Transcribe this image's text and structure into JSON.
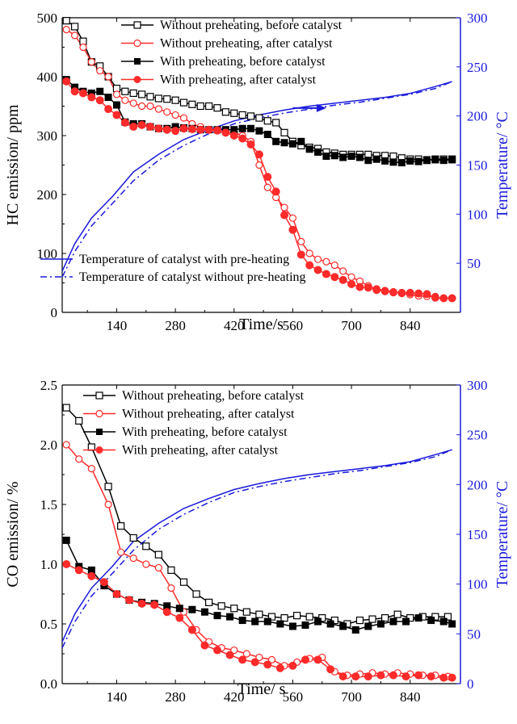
{
  "colors": {
    "black": "#000000",
    "red": "#ff2a2a",
    "blue": "#1a1adc"
  },
  "chart_data": [
    {
      "type": "line",
      "xlabel": "Time/s",
      "ylabel": "HC emission/ ppm",
      "y2label": "Temperature/ °C",
      "xlim": [
        10,
        960
      ],
      "ylim": [
        0,
        500
      ],
      "y2lim": [
        0,
        300
      ],
      "xticks": [
        140,
        280,
        420,
        560,
        700,
        840
      ],
      "yticks": [
        0,
        100,
        200,
        300,
        400,
        500
      ],
      "y2ticks": [
        50,
        100,
        150,
        200,
        250,
        300
      ],
      "legend_position": "top-center",
      "series": [
        {
          "name": "Without preheating, before catalyst",
          "axis": "left",
          "color": "#000000",
          "marker": "open-square",
          "x": [
            20,
            40,
            60,
            80,
            100,
            120,
            140,
            160,
            180,
            200,
            220,
            240,
            260,
            280,
            300,
            320,
            340,
            360,
            380,
            400,
            420,
            440,
            460,
            480,
            500,
            520,
            540,
            560,
            580,
            600,
            620,
            640,
            660,
            680,
            700,
            720,
            740,
            760,
            780,
            800,
            820,
            840,
            860,
            880,
            900,
            920,
            940
          ],
          "y": [
            495,
            485,
            460,
            425,
            418,
            400,
            380,
            375,
            372,
            370,
            366,
            363,
            362,
            360,
            356,
            353,
            350,
            350,
            347,
            340,
            338,
            335,
            333,
            330,
            325,
            322,
            305,
            290,
            283,
            280,
            278,
            272,
            270,
            268,
            268,
            268,
            268,
            266,
            266,
            265,
            262,
            260,
            260,
            258,
            260,
            260,
            260
          ]
        },
        {
          "name": "Without preheating, after catalyst",
          "axis": "left",
          "color": "#ff2a2a",
          "marker": "open-circle",
          "x": [
            20,
            40,
            60,
            80,
            100,
            120,
            140,
            160,
            180,
            200,
            220,
            240,
            260,
            280,
            300,
            320,
            340,
            360,
            380,
            400,
            420,
            440,
            460,
            480,
            500,
            520,
            540,
            560,
            580,
            600,
            620,
            640,
            660,
            680,
            700,
            720,
            740,
            760,
            780,
            800,
            820,
            840,
            860,
            880,
            900
          ],
          "y": [
            480,
            470,
            450,
            425,
            410,
            400,
            370,
            360,
            355,
            350,
            350,
            345,
            340,
            335,
            330,
            320,
            315,
            310,
            308,
            306,
            305,
            300,
            290,
            250,
            212,
            195,
            178,
            160,
            120,
            100,
            90,
            86,
            80,
            70,
            60,
            53,
            45,
            40,
            37,
            35,
            32,
            30,
            28,
            27,
            27
          ]
        },
        {
          "name": "With preheating, before catalyst",
          "axis": "left",
          "color": "#000000",
          "marker": "filled-square",
          "x": [
            20,
            40,
            60,
            80,
            100,
            120,
            140,
            160,
            180,
            200,
            220,
            240,
            260,
            280,
            300,
            320,
            340,
            360,
            380,
            400,
            420,
            440,
            460,
            480,
            500,
            520,
            540,
            560,
            580,
            600,
            620,
            640,
            660,
            680,
            700,
            720,
            740,
            760,
            780,
            800,
            820,
            840,
            860,
            880,
            900,
            920,
            940
          ],
          "y": [
            395,
            382,
            375,
            372,
            375,
            365,
            352,
            323,
            320,
            320,
            315,
            312,
            312,
            315,
            313,
            312,
            310,
            310,
            310,
            310,
            310,
            312,
            312,
            308,
            302,
            290,
            288,
            286,
            290,
            277,
            272,
            265,
            266,
            263,
            265,
            263,
            258,
            260,
            257,
            255,
            254,
            257,
            256,
            259,
            259,
            258,
            259
          ]
        },
        {
          "name": "With preheating, after catalyst",
          "axis": "left",
          "color": "#ff2a2a",
          "marker": "filled-circle",
          "x": [
            20,
            40,
            60,
            80,
            100,
            120,
            140,
            160,
            180,
            200,
            220,
            240,
            260,
            280,
            300,
            320,
            340,
            360,
            380,
            400,
            420,
            440,
            460,
            480,
            500,
            520,
            540,
            560,
            580,
            600,
            620,
            640,
            660,
            680,
            700,
            720,
            740,
            760,
            780,
            800,
            820,
            840,
            860,
            880,
            900,
            920,
            940
          ],
          "y": [
            392,
            375,
            372,
            365,
            360,
            345,
            335,
            322,
            315,
            318,
            315,
            312,
            310,
            308,
            312,
            311,
            310,
            310,
            309,
            305,
            300,
            295,
            285,
            268,
            230,
            205,
            165,
            140,
            98,
            80,
            72,
            65,
            60,
            55,
            48,
            43,
            42,
            38,
            36,
            34,
            33,
            33,
            32,
            31,
            25,
            24,
            24
          ]
        },
        {
          "name": "Temperature of catalyst with pre-heating",
          "axis": "right",
          "color": "#1a1adc",
          "dash": "solid",
          "x": [
            10,
            40,
            80,
            130,
            180,
            240,
            300,
            360,
            420,
            480,
            540,
            600,
            660,
            720,
            780,
            840,
            900,
            940
          ],
          "y": [
            42,
            70,
            96,
            118,
            143,
            161,
            176,
            186,
            195,
            201,
            206,
            210,
            213,
            216,
            219,
            223,
            230,
            235
          ]
        },
        {
          "name": "Temperature of catalyst without pre-heating",
          "axis": "right",
          "color": "#1a1adc",
          "dash": "dashdot",
          "x": [
            10,
            40,
            80,
            130,
            180,
            240,
            300,
            360,
            420,
            480,
            540,
            600,
            660,
            720,
            780,
            840,
            900,
            940
          ],
          "y": [
            36,
            62,
            88,
            111,
            134,
            155,
            170,
            182,
            192,
            198,
            203,
            207,
            211,
            214,
            218,
            222,
            228,
            235
          ]
        }
      ],
      "annotations": [
        {
          "type": "arrow",
          "direction": "right",
          "color": "#1a1adc",
          "x": [
            560,
            640
          ],
          "y2": 208
        }
      ]
    },
    {
      "type": "line",
      "xlabel": "Time/ s",
      "ylabel": "CO emission/ %",
      "y2label": "Temperature/ °C",
      "xlim": [
        10,
        960
      ],
      "ylim": [
        0,
        2.5
      ],
      "y2lim": [
        0,
        300
      ],
      "xticks": [
        140,
        280,
        420,
        560,
        700,
        840
      ],
      "yticks": [
        0.0,
        0.5,
        1.0,
        1.5,
        2.0,
        2.5
      ],
      "y2ticks": [
        0,
        50,
        100,
        150,
        200,
        250,
        300
      ],
      "legend_position": "top-center",
      "series": [
        {
          "name": "Without preheating, before catalyst",
          "axis": "left",
          "color": "#000000",
          "marker": "open-square",
          "x": [
            20,
            50,
            80,
            120,
            150,
            180,
            210,
            240,
            270,
            300,
            330,
            360,
            390,
            420,
            450,
            480,
            510,
            540,
            570,
            600,
            630,
            660,
            690,
            720,
            750,
            780,
            810,
            840,
            870,
            900,
            930
          ],
          "y": [
            2.31,
            2.2,
            1.98,
            1.65,
            1.32,
            1.22,
            1.15,
            1.08,
            0.95,
            0.85,
            0.75,
            0.68,
            0.65,
            0.63,
            0.6,
            0.58,
            0.56,
            0.55,
            0.57,
            0.56,
            0.55,
            0.53,
            0.5,
            0.53,
            0.54,
            0.55,
            0.58,
            0.55,
            0.56,
            0.56,
            0.56
          ]
        },
        {
          "name": "Without preheating, after catalyst",
          "axis": "left",
          "color": "#ff2a2a",
          "marker": "open-circle",
          "x": [
            20,
            50,
            80,
            120,
            150,
            180,
            210,
            240,
            270,
            300,
            330,
            360,
            390,
            420,
            450,
            480,
            510,
            540,
            570,
            600,
            630,
            660,
            690,
            720,
            750,
            780,
            810,
            840,
            870,
            900,
            930
          ],
          "y": [
            2.0,
            1.88,
            1.8,
            1.5,
            1.1,
            1.05,
            1.0,
            0.97,
            0.8,
            0.6,
            0.45,
            0.35,
            0.3,
            0.28,
            0.25,
            0.22,
            0.2,
            0.15,
            0.18,
            0.21,
            0.22,
            0.1,
            0.07,
            0.08,
            0.09,
            0.08,
            0.09,
            0.08,
            0.07,
            0.07,
            0.06
          ]
        },
        {
          "name": "With preheating, before catalyst",
          "axis": "left",
          "color": "#000000",
          "marker": "filled-square",
          "x": [
            20,
            50,
            80,
            110,
            140,
            170,
            200,
            230,
            260,
            290,
            320,
            350,
            380,
            410,
            440,
            470,
            500,
            530,
            560,
            590,
            620,
            650,
            680,
            710,
            740,
            770,
            800,
            830,
            860,
            890,
            920,
            940
          ],
          "y": [
            1.2,
            0.98,
            0.95,
            0.82,
            0.75,
            0.7,
            0.68,
            0.67,
            0.65,
            0.63,
            0.62,
            0.6,
            0.57,
            0.56,
            0.53,
            0.52,
            0.52,
            0.5,
            0.48,
            0.49,
            0.52,
            0.5,
            0.48,
            0.45,
            0.48,
            0.5,
            0.52,
            0.52,
            0.55,
            0.53,
            0.52,
            0.5
          ]
        },
        {
          "name": "With preheating, after catalyst",
          "axis": "left",
          "color": "#ff2a2a",
          "marker": "filled-circle",
          "x": [
            20,
            50,
            80,
            110,
            140,
            170,
            200,
            230,
            260,
            290,
            320,
            350,
            380,
            410,
            440,
            470,
            500,
            530,
            560,
            590,
            620,
            650,
            680,
            710,
            740,
            770,
            800,
            830,
            860,
            890,
            920,
            940
          ],
          "y": [
            1.0,
            0.95,
            0.9,
            0.85,
            0.75,
            0.7,
            0.67,
            0.66,
            0.6,
            0.55,
            0.45,
            0.32,
            0.28,
            0.24,
            0.2,
            0.18,
            0.16,
            0.13,
            0.15,
            0.2,
            0.2,
            0.12,
            0.06,
            0.06,
            0.06,
            0.07,
            0.07,
            0.06,
            0.07,
            0.06,
            0.05,
            0.05
          ]
        },
        {
          "name": "",
          "axis": "right",
          "color": "#1a1adc",
          "dash": "solid",
          "x": [
            10,
            40,
            80,
            130,
            180,
            240,
            300,
            360,
            420,
            480,
            540,
            600,
            660,
            720,
            780,
            840,
            900,
            940
          ],
          "y": [
            42,
            70,
            96,
            118,
            143,
            161,
            176,
            186,
            195,
            201,
            206,
            210,
            213,
            216,
            219,
            223,
            230,
            235
          ]
        },
        {
          "name": "",
          "axis": "right",
          "color": "#1a1adc",
          "dash": "dashdot",
          "x": [
            10,
            40,
            80,
            130,
            180,
            240,
            300,
            360,
            420,
            480,
            540,
            600,
            660,
            720,
            780,
            840,
            900,
            940
          ],
          "y": [
            36,
            62,
            88,
            111,
            134,
            155,
            170,
            182,
            192,
            198,
            203,
            207,
            211,
            214,
            218,
            222,
            228,
            235
          ]
        }
      ]
    }
  ]
}
